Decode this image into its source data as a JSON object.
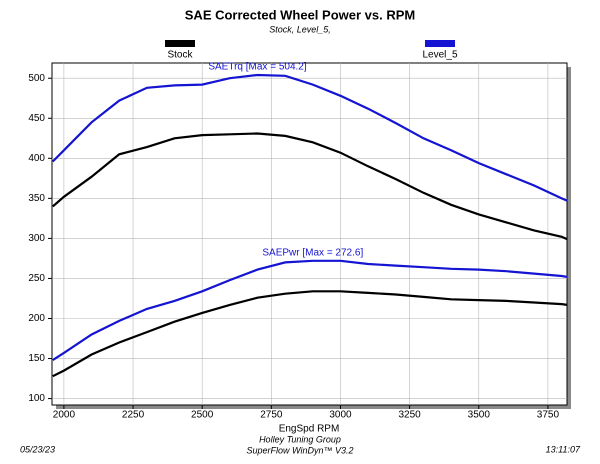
{
  "chart_data": {
    "type": "line",
    "title": "SAE Corrected Wheel Power vs. RPM",
    "subtitle": "Stock, Level_5,",
    "x_label": "EngSpd RPM",
    "x": [
      1960,
      2000,
      2100,
      2200,
      2300,
      2400,
      2500,
      2600,
      2700,
      2800,
      2900,
      3000,
      3100,
      3200,
      3300,
      3400,
      3500,
      3600,
      3700,
      3800,
      3820
    ],
    "series": [
      {
        "name": "Stock",
        "color": "#000000",
        "torque": [
          340,
          352,
          377,
          405,
          414,
          425,
          429,
          430,
          431,
          428,
          420,
          407,
          390,
          374,
          357,
          342,
          330,
          320,
          310,
          302,
          299
        ],
        "power": [
          128,
          135,
          155,
          170,
          183,
          196,
          207,
          217,
          226,
          231,
          234,
          234,
          232,
          230,
          227,
          224,
          223,
          222,
          220,
          218,
          217
        ]
      },
      {
        "name": "Level_5",
        "color": "#1414d2",
        "torque": [
          396,
          410,
          445,
          472,
          488,
          491,
          492,
          500,
          504,
          503,
          492,
          478,
          462,
          444,
          425,
          410,
          394,
          380,
          366,
          350,
          347
        ],
        "power": [
          148,
          157,
          180,
          197,
          212,
          222,
          234,
          248,
          261,
          270,
          272,
          272,
          268,
          266,
          264,
          262,
          261,
          259,
          256,
          253,
          252
        ]
      }
    ],
    "annotations": [
      {
        "text": "SAETrq [Max = 504.2]",
        "series": 1,
        "list": "torque"
      },
      {
        "text": "SAEPwr [Max = 272.6]",
        "series": 1,
        "list": "power"
      }
    ],
    "xlim": [
      1957,
      3819
    ],
    "ylim": [
      92,
      519
    ],
    "xticks": [
      2000,
      2250,
      2500,
      2750,
      3000,
      3250,
      3500,
      3750
    ],
    "yticks": [
      100,
      150,
      200,
      250,
      300,
      350,
      400,
      450,
      500
    ],
    "grid": true,
    "footer": {
      "date": "05/23/23",
      "company": "Holley Tuning Group",
      "software": "SuperFlow WinDyn™ V3.2",
      "time": "13:11:07"
    }
  }
}
